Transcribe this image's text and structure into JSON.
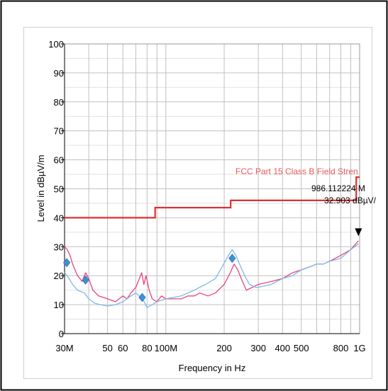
{
  "chart_data": {
    "type": "line",
    "title": "",
    "xlabel": "Frequency in Hz",
    "ylabel": "Level in dBµV/m",
    "x_scale": "log",
    "xlim": [
      30000000,
      1000000000
    ],
    "ylim": [
      0,
      100
    ],
    "grid": true,
    "y_ticks": [
      "0",
      "10",
      "20",
      "30",
      "40",
      "50",
      "60",
      "70",
      "80",
      "90",
      "100"
    ],
    "y_tick_values": [
      0,
      10,
      20,
      30,
      40,
      50,
      60,
      70,
      80,
      90,
      100
    ],
    "x_ticks": [
      "30M",
      "50",
      "60",
      "80",
      "100M",
      "200",
      "300",
      "400",
      "500",
      "800",
      "1G"
    ],
    "x_tick_values": [
      30000000,
      50000000,
      60000000,
      80000000,
      100000000,
      200000000,
      300000000,
      400000000,
      500000000,
      800000000,
      1000000000
    ],
    "colors": {
      "limit": "#e03030",
      "series_red": "#e8457a",
      "series_blue": "#7eb8e8",
      "markers": "#3f8fd6",
      "grid": "#c0c0c0"
    },
    "limit_line": {
      "name": "FCC Part 15 Class B Field Stren",
      "points": [
        [
          30000000,
          40
        ],
        [
          88000000,
          40
        ],
        [
          88000000,
          43.5
        ],
        [
          216000000,
          43.5
        ],
        [
          216000000,
          46
        ],
        [
          960000000,
          46
        ],
        [
          960000000,
          54
        ],
        [
          1000000000,
          54
        ]
      ]
    },
    "series": [
      {
        "color": "#e8457a",
        "points": [
          [
            30000000,
            30
          ],
          [
            31000000,
            29
          ],
          [
            32000000,
            27
          ],
          [
            33000000,
            24
          ],
          [
            34000000,
            22
          ],
          [
            35000000,
            20
          ],
          [
            37000000,
            18
          ],
          [
            38500000,
            21
          ],
          [
            40000000,
            19
          ],
          [
            42000000,
            15
          ],
          [
            45000000,
            13
          ],
          [
            50000000,
            12
          ],
          [
            55000000,
            11
          ],
          [
            60000000,
            13
          ],
          [
            63000000,
            12
          ],
          [
            66000000,
            14
          ],
          [
            70000000,
            16
          ],
          [
            73000000,
            19
          ],
          [
            75000000,
            21
          ],
          [
            77000000,
            17
          ],
          [
            79000000,
            20
          ],
          [
            82000000,
            15
          ],
          [
            85000000,
            12
          ],
          [
            90000000,
            11
          ],
          [
            95000000,
            13
          ],
          [
            100000000,
            12
          ],
          [
            110000000,
            12
          ],
          [
            120000000,
            12
          ],
          [
            130000000,
            13
          ],
          [
            140000000,
            13
          ],
          [
            150000000,
            14
          ],
          [
            165000000,
            13
          ],
          [
            180000000,
            14
          ],
          [
            200000000,
            17
          ],
          [
            215000000,
            21
          ],
          [
            225000000,
            24
          ],
          [
            235000000,
            22
          ],
          [
            245000000,
            19
          ],
          [
            260000000,
            15
          ],
          [
            280000000,
            16
          ],
          [
            300000000,
            17
          ],
          [
            350000000,
            18
          ],
          [
            400000000,
            19
          ],
          [
            450000000,
            21
          ],
          [
            500000000,
            22
          ],
          [
            550000000,
            23
          ],
          [
            600000000,
            24
          ],
          [
            650000000,
            24
          ],
          [
            700000000,
            25
          ],
          [
            800000000,
            27
          ],
          [
            900000000,
            29
          ],
          [
            986112224,
            32
          ]
        ]
      },
      {
        "color": "#7eb8e8",
        "points": [
          [
            30000000,
            21
          ],
          [
            31000000,
            20
          ],
          [
            33000000,
            17
          ],
          [
            35000000,
            15
          ],
          [
            38000000,
            14
          ],
          [
            40000000,
            12
          ],
          [
            43000000,
            10.5
          ],
          [
            46000000,
            10
          ],
          [
            50000000,
            9.5
          ],
          [
            55000000,
            10
          ],
          [
            60000000,
            11
          ],
          [
            63000000,
            12
          ],
          [
            66000000,
            13
          ],
          [
            70000000,
            14
          ],
          [
            73000000,
            13
          ],
          [
            76000000,
            12
          ],
          [
            80000000,
            9
          ],
          [
            85000000,
            10
          ],
          [
            90000000,
            11
          ],
          [
            100000000,
            12
          ],
          [
            120000000,
            13
          ],
          [
            140000000,
            15
          ],
          [
            160000000,
            17
          ],
          [
            180000000,
            19
          ],
          [
            195000000,
            23
          ],
          [
            210000000,
            27
          ],
          [
            220000000,
            29
          ],
          [
            230000000,
            27
          ],
          [
            240000000,
            24
          ],
          [
            255000000,
            20
          ],
          [
            270000000,
            17
          ],
          [
            290000000,
            16
          ],
          [
            300000000,
            16
          ],
          [
            350000000,
            17
          ],
          [
            400000000,
            19
          ],
          [
            450000000,
            20
          ],
          [
            500000000,
            22
          ],
          [
            550000000,
            23
          ],
          [
            600000000,
            24
          ],
          [
            650000000,
            24
          ],
          [
            700000000,
            25
          ],
          [
            800000000,
            26
          ],
          [
            900000000,
            29
          ],
          [
            986112224,
            31
          ]
        ]
      }
    ],
    "markers": [
      {
        "x": 30800000,
        "y": 24.5
      },
      {
        "x": 38500000,
        "y": 18.5
      },
      {
        "x": 75500000,
        "y": 12.5
      },
      {
        "x": 220000000,
        "y": 26
      }
    ],
    "peak_marker": {
      "x": 986112224,
      "y": 32.903,
      "line1": "986.112224 M",
      "line2": "32.903 dBµV/"
    }
  }
}
